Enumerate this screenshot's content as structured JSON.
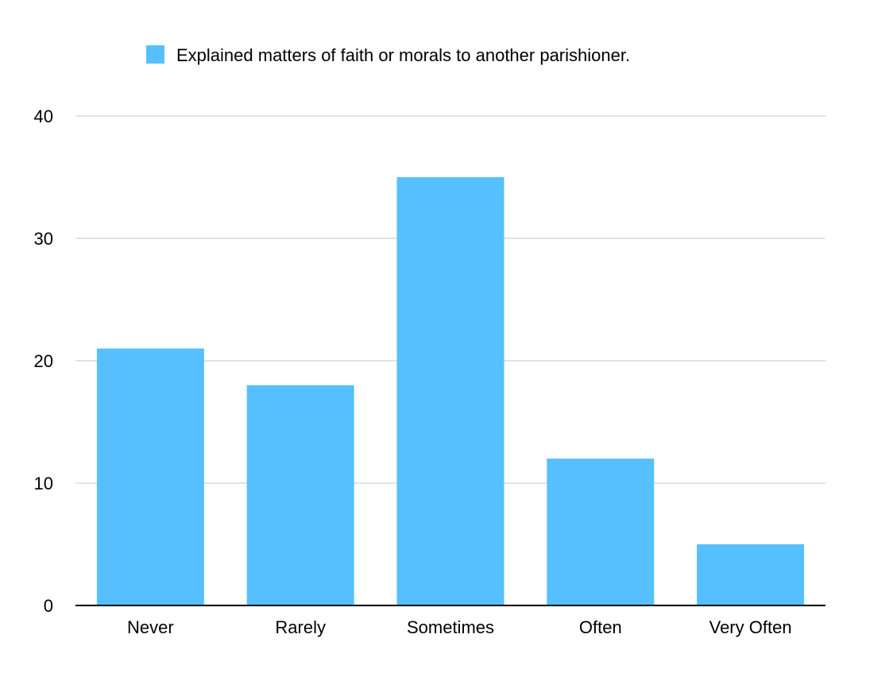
{
  "chart_data": {
    "type": "bar",
    "categories": [
      "Never",
      "Rarely",
      "Sometimes",
      "Often",
      "Very Often"
    ],
    "series": [
      {
        "name": "Explained matters of faith or morals to another parishioner.",
        "values": [
          21,
          18,
          35,
          12,
          5
        ],
        "color": "#55c0fd"
      }
    ],
    "y_ticks": [
      "0",
      "10",
      "20",
      "30",
      "40"
    ],
    "ylim": [
      0,
      40
    ],
    "grid": true,
    "legend_position": "top",
    "gridline_color": "#c6c6c6",
    "axis_color": "#000000"
  }
}
